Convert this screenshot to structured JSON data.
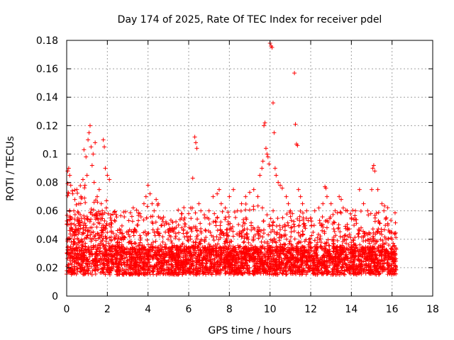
{
  "chart_data": {
    "type": "scatter",
    "title": "Day 174 of 2025, Rate Of TEC Index for receiver pdel",
    "xlabel": "GPS time / hours",
    "ylabel": "ROTI / TECUs",
    "xlim": [
      0,
      18
    ],
    "ylim": [
      0,
      0.18
    ],
    "x_ticks": [
      0,
      2,
      4,
      6,
      8,
      10,
      12,
      14,
      16,
      18
    ],
    "x_tick_labels": [
      "0",
      "2",
      "4",
      "6",
      "8",
      "10",
      "12",
      "14",
      "16",
      "18"
    ],
    "y_ticks": [
      0,
      0.02,
      0.04,
      0.06,
      0.08,
      0.1,
      0.12,
      0.14,
      0.16,
      0.18
    ],
    "y_tick_labels": [
      "0",
      "0.02",
      "0.04",
      "0.06",
      "0.08",
      "0.1",
      "0.12",
      "0.14",
      "0.16",
      "0.18"
    ],
    "grid": true,
    "marker": "+",
    "color": "#ff0000",
    "series": [
      {
        "name": "ROTI",
        "points": [
          [
            0.05,
            0.088
          ],
          [
            0.1,
            0.09
          ],
          [
            0.15,
            0.085
          ],
          [
            0.2,
            0.078
          ],
          [
            0.3,
            0.072
          ],
          [
            0.4,
            0.068
          ],
          [
            0.5,
            0.075
          ],
          [
            0.6,
            0.065
          ],
          [
            0.7,
            0.07
          ],
          [
            0.8,
            0.082
          ],
          [
            0.9,
            0.078
          ],
          [
            1.0,
            0.085
          ],
          [
            1.05,
            0.11
          ],
          [
            1.1,
            0.115
          ],
          [
            1.15,
            0.12
          ],
          [
            1.2,
            0.105
          ],
          [
            1.3,
            0.1
          ],
          [
            1.4,
            0.108
          ],
          [
            0.85,
            0.103
          ],
          [
            0.95,
            0.098
          ],
          [
            1.25,
            0.092
          ],
          [
            1.35,
            0.08
          ],
          [
            1.5,
            0.07
          ],
          [
            1.6,
            0.075
          ],
          [
            1.8,
            0.11
          ],
          [
            1.85,
            0.105
          ],
          [
            1.9,
            0.09
          ],
          [
            2.0,
            0.085
          ],
          [
            2.1,
            0.082
          ],
          [
            1.7,
            0.065
          ],
          [
            0.35,
            0.06
          ],
          [
            0.55,
            0.055
          ],
          [
            0.65,
            0.05
          ],
          [
            0.45,
            0.045
          ],
          [
            1.45,
            0.055
          ],
          [
            1.65,
            0.058
          ],
          [
            1.75,
            0.06
          ],
          [
            1.95,
            0.062
          ],
          [
            2.05,
            0.058
          ],
          [
            2.15,
            0.055
          ],
          [
            2.2,
            0.045
          ],
          [
            2.5,
            0.038
          ],
          [
            2.8,
            0.03
          ],
          [
            3.0,
            0.025
          ],
          [
            3.3,
            0.045
          ],
          [
            3.5,
            0.05
          ],
          [
            3.6,
            0.058
          ],
          [
            3.8,
            0.065
          ],
          [
            3.9,
            0.07
          ],
          [
            4.0,
            0.078
          ],
          [
            4.1,
            0.072
          ],
          [
            4.2,
            0.065
          ],
          [
            4.3,
            0.06
          ],
          [
            4.4,
            0.068
          ],
          [
            4.5,
            0.065
          ],
          [
            4.6,
            0.055
          ],
          [
            4.8,
            0.05
          ],
          [
            5.0,
            0.045
          ],
          [
            5.2,
            0.048
          ],
          [
            5.5,
            0.05
          ],
          [
            5.8,
            0.055
          ],
          [
            6.0,
            0.058
          ],
          [
            6.1,
            0.062
          ],
          [
            6.2,
            0.083
          ],
          [
            6.3,
            0.112
          ],
          [
            6.35,
            0.108
          ],
          [
            6.4,
            0.104
          ],
          [
            6.5,
            0.065
          ],
          [
            6.6,
            0.06
          ],
          [
            6.8,
            0.055
          ],
          [
            7.0,
            0.06
          ],
          [
            7.2,
            0.07
          ],
          [
            7.4,
            0.072
          ],
          [
            7.5,
            0.075
          ],
          [
            7.6,
            0.065
          ],
          [
            7.8,
            0.062
          ],
          [
            8.0,
            0.07
          ],
          [
            8.2,
            0.075
          ],
          [
            8.4,
            0.06
          ],
          [
            8.6,
            0.065
          ],
          [
            8.8,
            0.07
          ],
          [
            9.0,
            0.073
          ],
          [
            9.2,
            0.075
          ],
          [
            9.4,
            0.07
          ],
          [
            9.5,
            0.085
          ],
          [
            9.6,
            0.09
          ],
          [
            9.65,
            0.095
          ],
          [
            9.7,
            0.12
          ],
          [
            9.75,
            0.122
          ],
          [
            9.8,
            0.104
          ],
          [
            9.85,
            0.1
          ],
          [
            9.9,
            0.098
          ],
          [
            9.95,
            0.093
          ],
          [
            10.0,
            0.178
          ],
          [
            10.05,
            0.176
          ],
          [
            10.1,
            0.175
          ],
          [
            10.15,
            0.136
          ],
          [
            10.2,
            0.115
          ],
          [
            10.25,
            0.09
          ],
          [
            10.3,
            0.085
          ],
          [
            10.4,
            0.08
          ],
          [
            10.5,
            0.078
          ],
          [
            10.6,
            0.076
          ],
          [
            10.8,
            0.07
          ],
          [
            10.9,
            0.065
          ],
          [
            11.0,
            0.06
          ],
          [
            11.1,
            0.058
          ],
          [
            11.2,
            0.157
          ],
          [
            11.25,
            0.121
          ],
          [
            11.3,
            0.107
          ],
          [
            11.35,
            0.106
          ],
          [
            11.4,
            0.075
          ],
          [
            11.5,
            0.07
          ],
          [
            11.6,
            0.065
          ],
          [
            11.8,
            0.06
          ],
          [
            12.0,
            0.055
          ],
          [
            12.2,
            0.06
          ],
          [
            12.4,
            0.062
          ],
          [
            12.6,
            0.065
          ],
          [
            12.7,
            0.077
          ],
          [
            12.75,
            0.076
          ],
          [
            12.8,
            0.07
          ],
          [
            13.0,
            0.065
          ],
          [
            13.2,
            0.06
          ],
          [
            13.4,
            0.07
          ],
          [
            13.5,
            0.068
          ],
          [
            13.6,
            0.062
          ],
          [
            13.8,
            0.06
          ],
          [
            14.0,
            0.055
          ],
          [
            14.2,
            0.06
          ],
          [
            14.4,
            0.075
          ],
          [
            14.6,
            0.065
          ],
          [
            14.8,
            0.06
          ],
          [
            15.0,
            0.075
          ],
          [
            15.05,
            0.09
          ],
          [
            15.1,
            0.092
          ],
          [
            15.15,
            0.088
          ],
          [
            15.3,
            0.075
          ],
          [
            15.5,
            0.065
          ],
          [
            15.6,
            0.06
          ],
          [
            15.7,
            0.055
          ],
          [
            15.8,
            0.05
          ],
          [
            15.9,
            0.045
          ],
          [
            16.0,
            0.04
          ],
          [
            16.1,
            0.035
          ],
          [
            16.15,
            0.03
          ]
        ]
      }
    ]
  }
}
